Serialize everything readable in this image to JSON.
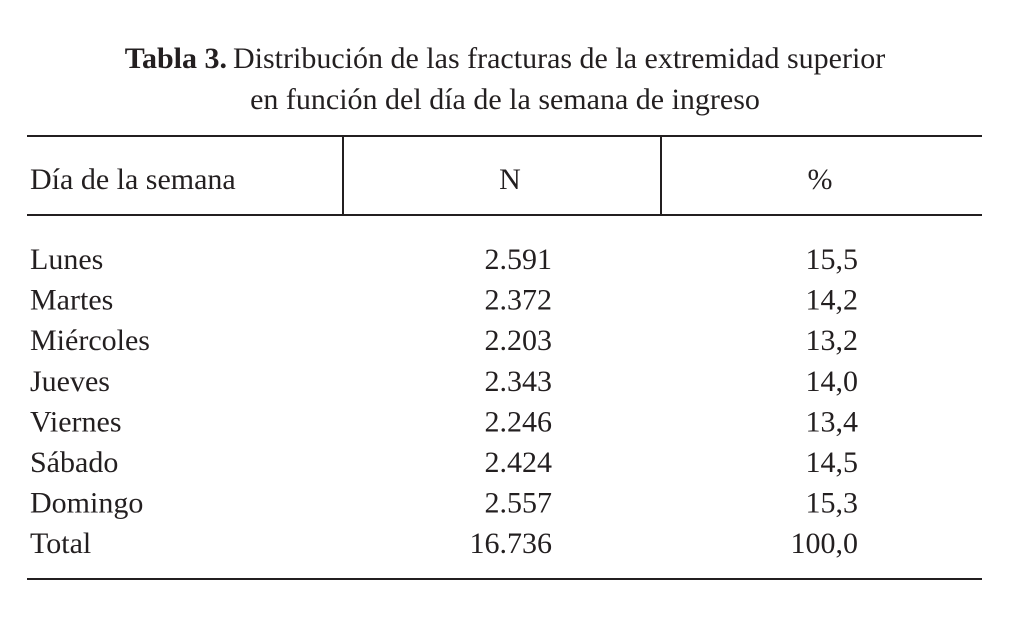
{
  "caption": {
    "label": "Tabla 3.",
    "lines": [
      "Distribución de las fracturas de la extremidad superior",
      "en función del día de la semana de ingreso"
    ]
  },
  "table": {
    "header": [
      "Día de la semana",
      "N",
      "%"
    ],
    "rows": [
      [
        "Lunes",
        "2.591",
        "15,5"
      ],
      [
        "Martes",
        "2.372",
        "14,2"
      ],
      [
        "Miércoles",
        "2.203",
        "13,2"
      ],
      [
        "Jueves",
        "2.343",
        "14,0"
      ],
      [
        "Viernes",
        "2.246",
        "13,4"
      ],
      [
        "Sábado",
        "2.424",
        "14,5"
      ],
      [
        "Domingo",
        "2.557",
        "15,3"
      ],
      [
        "Total",
        "16.736",
        "100,0"
      ]
    ]
  }
}
